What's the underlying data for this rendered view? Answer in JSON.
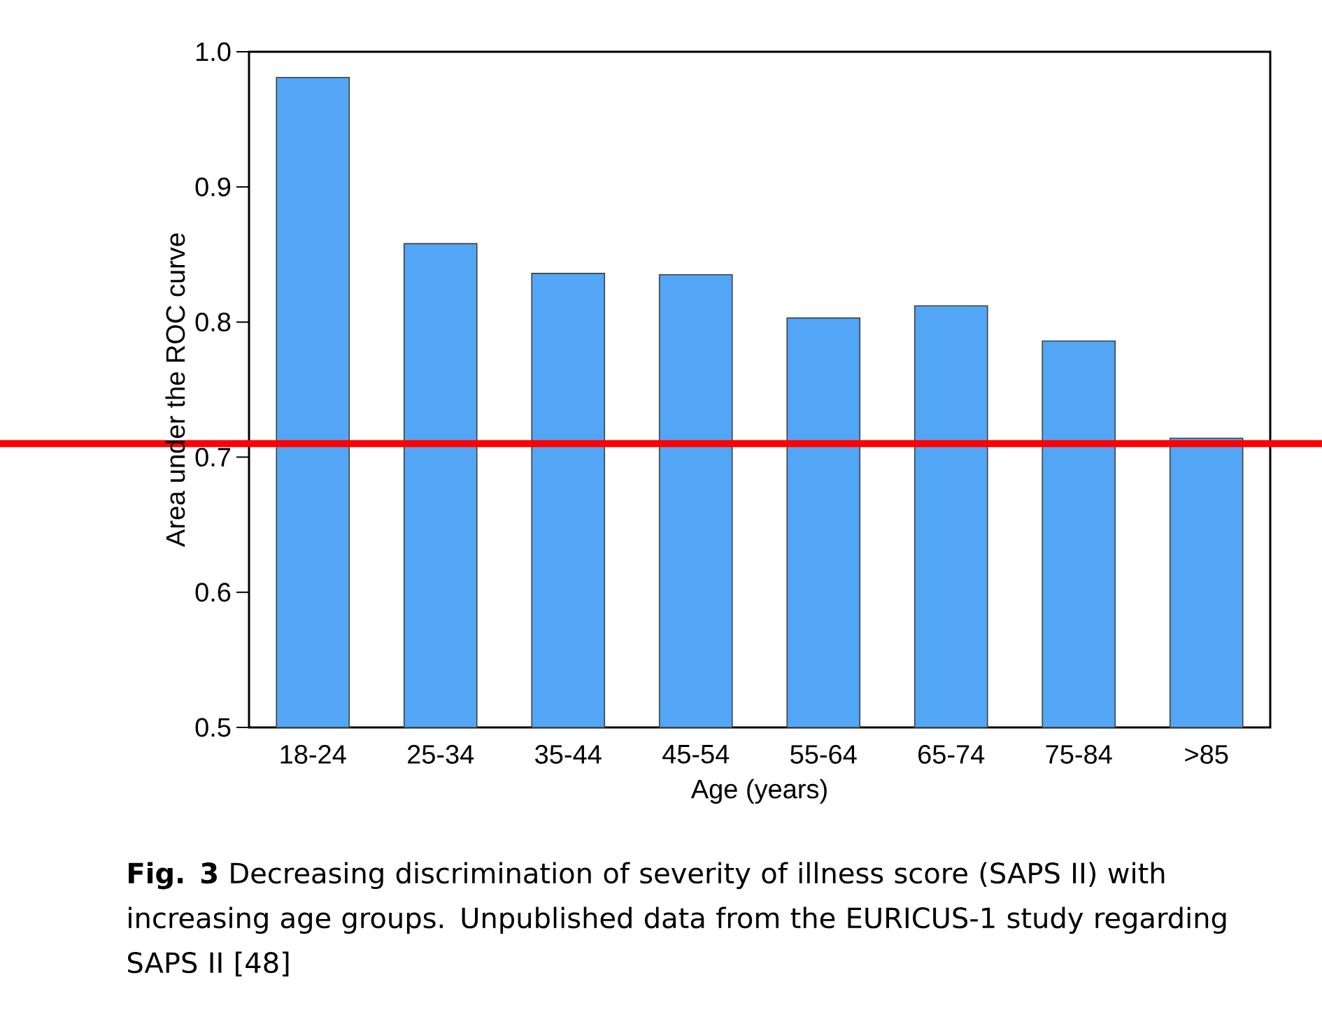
{
  "chart_data": {
    "type": "bar",
    "xlabel": "Age (years)",
    "ylabel": "Area under the ROC curve",
    "categories": [
      "18-24",
      "25-34",
      "35-44",
      "45-54",
      "55-64",
      "65-74",
      "75-84",
      ">85"
    ],
    "values": [
      0.981,
      0.858,
      0.836,
      0.835,
      0.803,
      0.812,
      0.786,
      0.714
    ],
    "color": "#52a6f5",
    "ylim": [
      0.5,
      1.0
    ],
    "yticks": [
      {
        "value": 0.5,
        "label": "0.5"
      },
      {
        "value": 0.6,
        "label": "0.6"
      },
      {
        "value": 0.7,
        "label": "0.7"
      },
      {
        "value": 0.8,
        "label": "0.8"
      },
      {
        "value": 0.9,
        "label": "0.9"
      },
      {
        "value": 1.0,
        "label": "1.0"
      }
    ],
    "ref_lines": [
      {
        "axis": "y",
        "value": 0.71,
        "color": "#ff0000"
      }
    ],
    "annotations": [
      "**Fig. 3**  Decreasing discrimination of severity of illness score (SAPS II) with increasing age groups. Unpublished data from the EURICUS-1 study regarding SAPS II [48]"
    ],
    "grid": false
  }
}
